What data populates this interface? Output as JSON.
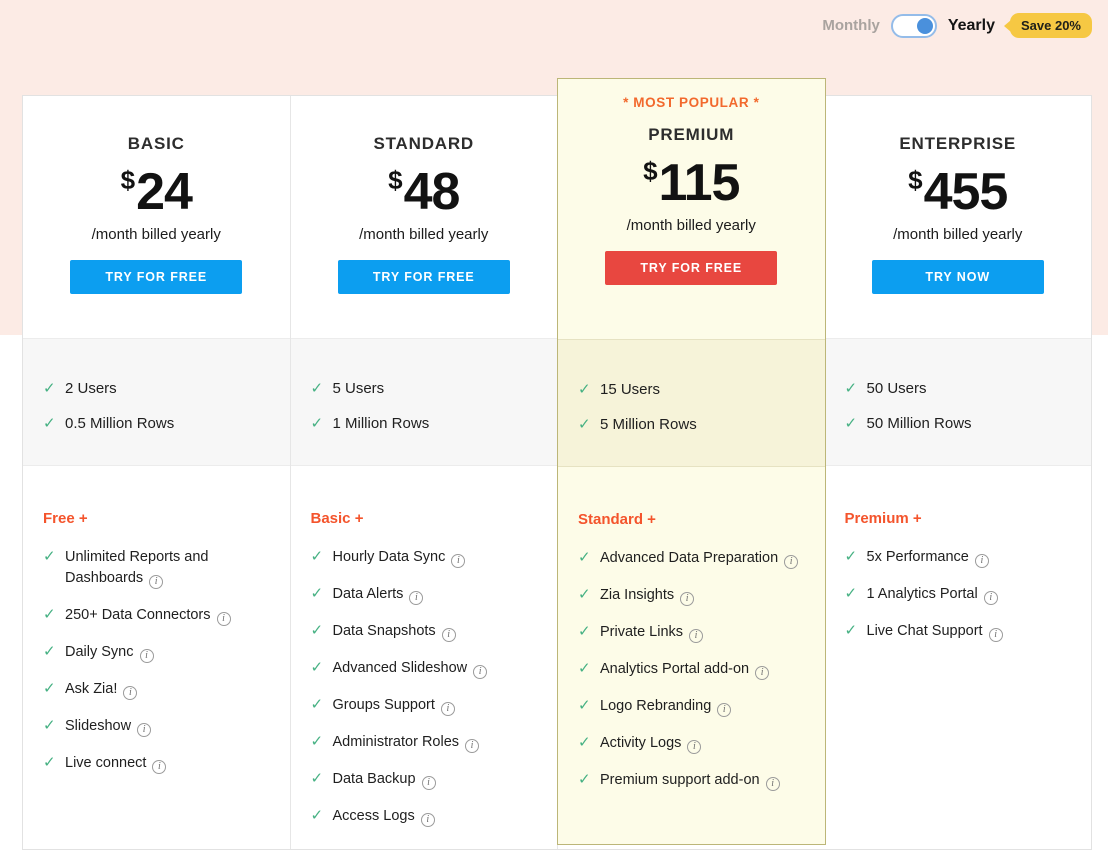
{
  "billing": {
    "monthly_label": "Monthly",
    "yearly_label": "Yearly",
    "save_badge_label": "Save 20%",
    "selected": "Yearly"
  },
  "most_popular_label": "* MOST POPULAR *",
  "plans": [
    {
      "id": "basic",
      "name": "BASIC",
      "currency": "$",
      "price": "24",
      "billing_note": "/month billed yearly",
      "cta_label": "TRY FOR FREE",
      "cta_style": "blue",
      "most_popular": false,
      "limits": [
        "2 Users",
        "0.5 Million Rows"
      ],
      "features_heading": "Free +",
      "features": [
        "Unlimited Reports and Dashboards",
        "250+ Data Connectors",
        "Daily Sync",
        "Ask Zia!",
        "Slideshow",
        "Live connect"
      ]
    },
    {
      "id": "standard",
      "name": "STANDARD",
      "currency": "$",
      "price": "48",
      "billing_note": "/month billed yearly",
      "cta_label": "TRY FOR FREE",
      "cta_style": "blue",
      "most_popular": false,
      "limits": [
        "5 Users",
        "1 Million Rows"
      ],
      "features_heading": "Basic +",
      "features": [
        "Hourly Data Sync",
        "Data Alerts",
        "Data Snapshots",
        "Advanced Slideshow",
        "Groups Support",
        "Administrator Roles",
        "Data Backup",
        "Access Logs"
      ]
    },
    {
      "id": "premium",
      "name": "PREMIUM",
      "currency": "$",
      "price": "115",
      "billing_note": "/month billed yearly",
      "cta_label": "TRY FOR FREE",
      "cta_style": "red",
      "most_popular": true,
      "limits": [
        "15 Users",
        "5 Million Rows"
      ],
      "features_heading": "Standard +",
      "features": [
        "Advanced Data Preparation",
        "Zia Insights",
        "Private Links",
        "Analytics Portal add-on",
        "Logo Rebranding",
        "Activity Logs",
        "Premium support add-on"
      ]
    },
    {
      "id": "enterprise",
      "name": "ENTERPRISE",
      "currency": "$",
      "price": "455",
      "billing_note": "/month billed yearly",
      "cta_label": "TRY NOW",
      "cta_style": "blue",
      "most_popular": false,
      "limits": [
        "50 Users",
        "50 Million Rows"
      ],
      "features_heading": "Premium +",
      "features": [
        "5x Performance",
        "1 Analytics Portal",
        "Live Chat Support"
      ]
    }
  ],
  "icons": {
    "check_icon": "✓",
    "info_icon": "i"
  },
  "colors": {
    "top_band": "#fcebe5",
    "accent_orange": "#f2692d",
    "features_heading_orange": "#f4542c",
    "check_green": "#46b183",
    "cta_blue": "#0c9ef0",
    "cta_red": "#e84740",
    "premium_bg": "#fdfce8",
    "premium_border": "#bcb678",
    "limits_bg": "#f7f7f7",
    "badge_yellow": "#f6c843",
    "toggle_knob_blue": "#4a90dc"
  }
}
